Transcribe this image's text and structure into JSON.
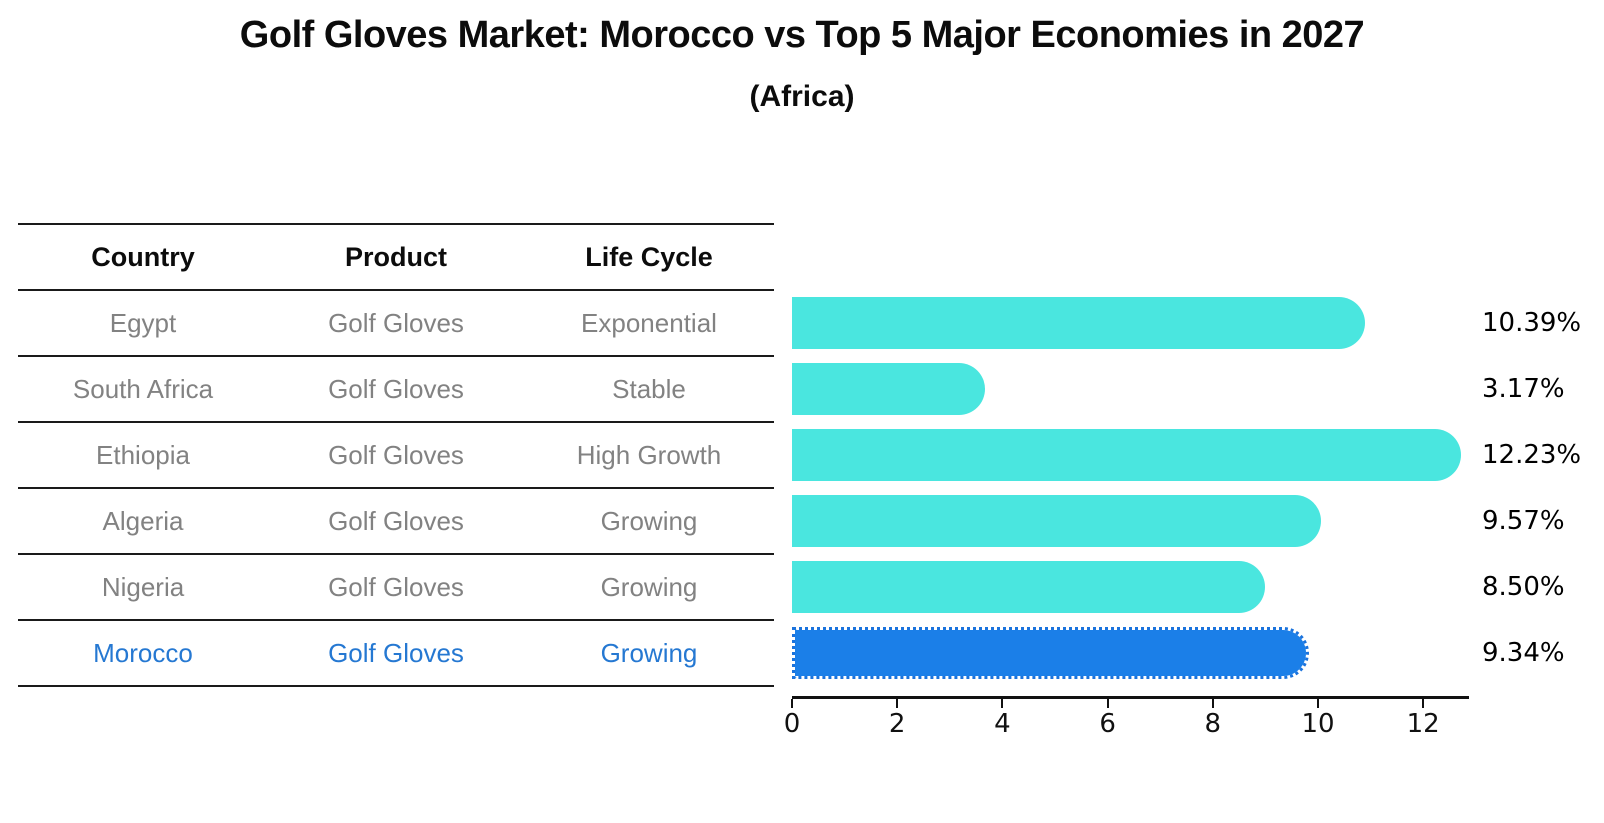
{
  "title": "Golf Gloves Market: Morocco vs Top 5 Major Economies in 2027",
  "subtitle": "(Africa)",
  "table": {
    "headers": [
      "Country",
      "Product",
      "Life Cycle"
    ],
    "rows": [
      {
        "country": "Egypt",
        "product": "Golf Gloves",
        "life_cycle": "Exponential",
        "highlighted": false
      },
      {
        "country": "South Africa",
        "product": "Golf Gloves",
        "life_cycle": "Stable",
        "highlighted": false
      },
      {
        "country": "Ethiopia",
        "product": "Golf Gloves",
        "life_cycle": "High Growth",
        "highlighted": false
      },
      {
        "country": "Algeria",
        "product": "Golf Gloves",
        "life_cycle": "Growing",
        "highlighted": false
      },
      {
        "country": "Nigeria",
        "product": "Golf Gloves",
        "life_cycle": "Growing",
        "highlighted": false
      },
      {
        "country": "Morocco",
        "product": "Golf Gloves",
        "life_cycle": "Growing",
        "highlighted": true
      }
    ]
  },
  "chart_data": {
    "type": "bar",
    "orientation": "horizontal",
    "title": "Golf Gloves Market: Morocco vs Top 5 Major Economies in 2027",
    "subtitle": "(Africa)",
    "xlabel": "",
    "ylabel": "",
    "categories": [
      "Egypt",
      "South Africa",
      "Ethiopia",
      "Algeria",
      "Nigeria",
      "Morocco"
    ],
    "values": [
      10.39,
      3.17,
      12.23,
      9.57,
      8.5,
      9.34
    ],
    "value_labels": [
      "10.39%",
      "3.17%",
      "12.23%",
      "9.57%",
      "8.50%",
      "9.34%"
    ],
    "highlight_index": 5,
    "xticks": [
      0,
      2,
      4,
      6,
      8,
      10,
      12
    ],
    "xlim": [
      0,
      12.85
    ],
    "grid": false,
    "legend": false,
    "colors": {
      "bar": "#4AE6DF",
      "highlight_bar": "#1B7FE8",
      "highlight_border": "#1a73dd",
      "highlight_text": "#2578D2",
      "row_text": "#828282",
      "axis": "#111111"
    }
  }
}
